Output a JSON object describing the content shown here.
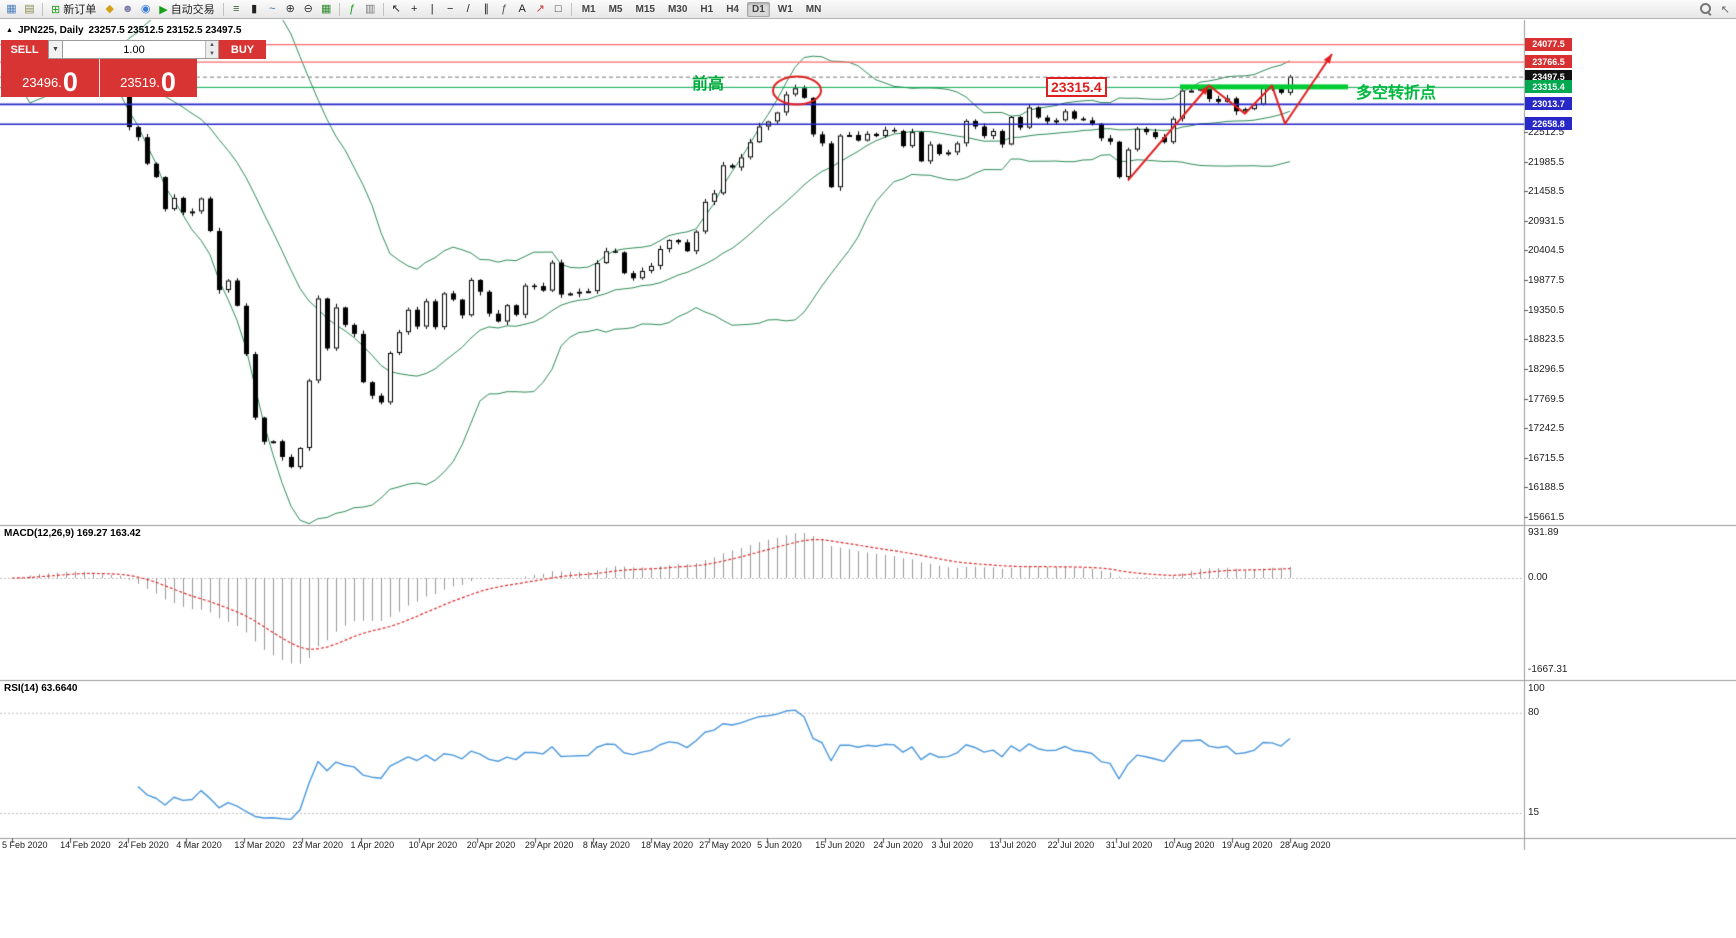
{
  "toolbar": {
    "items": [
      {
        "type": "icon",
        "name": "chart-window-icon",
        "glyph": "▦",
        "color": "#4a7ebb"
      },
      {
        "type": "icon",
        "name": "profiles-icon",
        "glyph": "▤",
        "color": "#8a8a50"
      },
      {
        "type": "sep"
      },
      {
        "type": "button",
        "name": "new-order-button",
        "glyph": "⊞",
        "color": "#1f9d1f",
        "label": "新订单"
      },
      {
        "type": "icon",
        "name": "chart-shift-icon",
        "glyph": "◆",
        "color": "#d4a017"
      },
      {
        "type": "icon",
        "name": "account-icon",
        "glyph": "☻",
        "color": "#7d7da8"
      },
      {
        "type": "icon",
        "name": "market-watch-icon",
        "glyph": "◉",
        "color": "#3b7dd8"
      },
      {
        "type": "button",
        "name": "autotrading-button",
        "glyph": "▶",
        "color": "#18a018",
        "label": "自动交易"
      },
      {
        "type": "sep"
      },
      {
        "type": "icon",
        "name": "bar-chart-icon",
        "glyph": "≡",
        "color": "#355f35"
      },
      {
        "type": "icon",
        "name": "candlestick-chart-icon",
        "glyph": "▮",
        "color": "#222222"
      },
      {
        "type": "icon",
        "name": "line-chart-icon",
        "glyph": "~",
        "color": "#2f6fae"
      },
      {
        "type": "icon",
        "name": "zoom-in-icon",
        "glyph": "⊕",
        "color": "#333333"
      },
      {
        "type": "icon",
        "name": "zoom-out-icon",
        "glyph": "⊖",
        "color": "#333333"
      },
      {
        "type": "icon",
        "name": "tile-windows-icon",
        "glyph": "▦",
        "color": "#2a8a2a"
      },
      {
        "type": "sep"
      },
      {
        "type": "icon",
        "name": "indicators-icon",
        "glyph": "ƒ",
        "color": "#18a018"
      },
      {
        "type": "icon",
        "name": "templates-icon",
        "glyph": "▥",
        "color": "#777777"
      },
      {
        "type": "sep"
      },
      {
        "type": "icon",
        "name": "cursor-icon",
        "glyph": "↖",
        "color": "#222222"
      },
      {
        "type": "icon",
        "name": "crosshair-icon",
        "glyph": "+",
        "color": "#222222"
      },
      {
        "type": "icon",
        "name": "vertical-line-icon",
        "glyph": "|",
        "color": "#222222"
      },
      {
        "type": "icon",
        "name": "horizontal-line-icon",
        "glyph": "−",
        "color": "#222222"
      },
      {
        "type": "icon",
        "name": "trendline-icon",
        "glyph": "/",
        "color": "#222222"
      },
      {
        "type": "icon",
        "name": "channel-icon",
        "glyph": "∥",
        "color": "#222222"
      },
      {
        "type": "icon",
        "name": "fibonacci-icon",
        "glyph": "ƒ",
        "color": "#555555"
      },
      {
        "type": "icon",
        "name": "text-label-icon",
        "glyph": "A",
        "color": "#222222"
      },
      {
        "type": "icon",
        "name": "arrow-object-icon",
        "glyph": "↗",
        "color": "#c23b3b"
      },
      {
        "type": "icon",
        "name": "shapes-icon",
        "glyph": "□",
        "color": "#222222"
      },
      {
        "type": "sep"
      }
    ],
    "timeframes": {
      "items": [
        "M1",
        "M5",
        "M15",
        "M30",
        "H1",
        "H4",
        "D1",
        "W1",
        "MN"
      ],
      "active": "D1"
    }
  },
  "chart_header": {
    "collapse_glyph": "▲",
    "symbol_period": "JPN225, Daily",
    "ohlc": "23257.5 23512.5 23152.5 23497.5"
  },
  "one_click": {
    "sell_label": "SELL",
    "buy_label": "BUY",
    "volume": "1.00",
    "sell_price": "23496.0",
    "buy_price": "23519.0",
    "dropdown_glyph": "▼",
    "spin_up_glyph": "▲",
    "spin_down_glyph": "▼",
    "panel_color": "#d93434"
  },
  "annotations": {
    "prev_high": {
      "text": "前高",
      "color": "#00ad3c"
    },
    "level_box": {
      "text": "23315.4",
      "color": "#e02020"
    },
    "turning_point": {
      "text": "多空转折点",
      "color": "#00b93e"
    }
  },
  "price_axis": {
    "tags": [
      {
        "text": "24077.5",
        "price": 24077.5,
        "bg": "#d83030"
      },
      {
        "text": "23766.5",
        "price": 23766.5,
        "bg": "#d83030"
      },
      {
        "text": "23497.5",
        "price": 23497.5,
        "bg": "#111111"
      },
      {
        "text": "23315.4",
        "price": 23315.4,
        "bg": "#00a84f"
      },
      {
        "text": "23013.7",
        "price": 23013.7,
        "bg": "#2828c8"
      },
      {
        "text": "22658.8",
        "price": 22658.8,
        "bg": "#2828c8"
      }
    ],
    "labels": [
      22512.5,
      21985.5,
      21458.5,
      20931.5,
      20404.5,
      19877.5,
      19350.5,
      18823.5,
      18296.5,
      17769.5,
      17242.5,
      16715.5,
      16188.5,
      15661.5
    ]
  },
  "macd": {
    "header": "MACD(12,26,9) 169.27 163.42",
    "axis": [
      "931.89",
      "0.00",
      "-1667.31"
    ],
    "line_color": "#e03030",
    "histogram_color": "#999999"
  },
  "rsi": {
    "header": "RSI(14) 63.6640",
    "axis": [
      "100",
      "80",
      "15"
    ],
    "levels": [
      80,
      15
    ],
    "line_color": "#4a97dd"
  },
  "chart_data": {
    "type": "candlestick",
    "symbol": "JPN225",
    "period": "Daily",
    "title": "JPN225, Daily",
    "ohlc_header": {
      "open": 23257.5,
      "high": 23512.5,
      "low": 23152.5,
      "close": 23497.5
    },
    "levels": {
      "resistance_red": [
        24077.5,
        23766.5
      ],
      "current_dashed": 23497.5,
      "pivot_green": 23315.4,
      "support_blue": [
        23013.7,
        22658.8
      ]
    },
    "bollinger": {
      "period": 20,
      "deviation": 2,
      "color": "#2E8B57"
    },
    "dates": [
      "5 Feb 2020",
      "14 Feb 2020",
      "24 Feb 2020",
      "4 Mar 2020",
      "13 Mar 2020",
      "23 Mar 2020",
      "1 Apr 2020",
      "10 Apr 2020",
      "20 Apr 2020",
      "29 Apr 2020",
      "8 May 2020",
      "18 May 2020",
      "27 May 2020",
      "5 Jun 2020",
      "15 Jun 2020",
      "24 Jun 2020",
      "3 Jul 2020",
      "13 Jul 2020",
      "22 Jul 2020",
      "31 Jul 2020",
      "10 Aug 2020",
      "19 Aug 2020",
      "28 Aug 2020"
    ],
    "closes": [
      23320,
      23380,
      23870,
      23830,
      23690,
      23740,
      23860,
      23790,
      23690,
      23400,
      23390,
      23480,
      23390,
      22600,
      22420,
      21950,
      21710,
      21140,
      21340,
      21080,
      21100,
      21330,
      20750,
      19700,
      19870,
      19420,
      18560,
      17430,
      17000,
      17010,
      16730,
      16550,
      16890,
      18090,
      19550,
      18660,
      19390,
      19080,
      18920,
      18060,
      17820,
      17700,
      18580,
      18950,
      19350,
      19050,
      19500,
      19040,
      19640,
      19530,
      19250,
      19880,
      19670,
      19280,
      19140,
      19430,
      19260,
      19780,
      19770,
      19690,
      20190,
      19620,
      19640,
      19670,
      19680,
      20180,
      20390,
      20370,
      20000,
      19910,
      20040,
      20130,
      20430,
      20590,
      20550,
      20390,
      20740,
      21270,
      21420,
      21920,
      21880,
      22060,
      22330,
      22610,
      22700,
      22860,
      23180,
      23290,
      23120,
      22470,
      22310,
      21530,
      22450,
      22460,
      22360,
      22480,
      22440,
      22550,
      22530,
      22260,
      22510,
      21990,
      22290,
      22120,
      22150,
      22310,
      22710,
      22610,
      22440,
      22530,
      22290,
      22780,
      22590,
      22950,
      22770,
      22700,
      22720,
      22880,
      22750,
      22720,
      22660,
      22400,
      22340,
      21710,
      22200,
      22570,
      22510,
      22420,
      22330,
      22750,
      23250,
      23250,
      23290,
      23100,
      23050,
      23110,
      22880,
      22920,
      23000,
      23300,
      23290,
      23210,
      23497.5
    ]
  }
}
